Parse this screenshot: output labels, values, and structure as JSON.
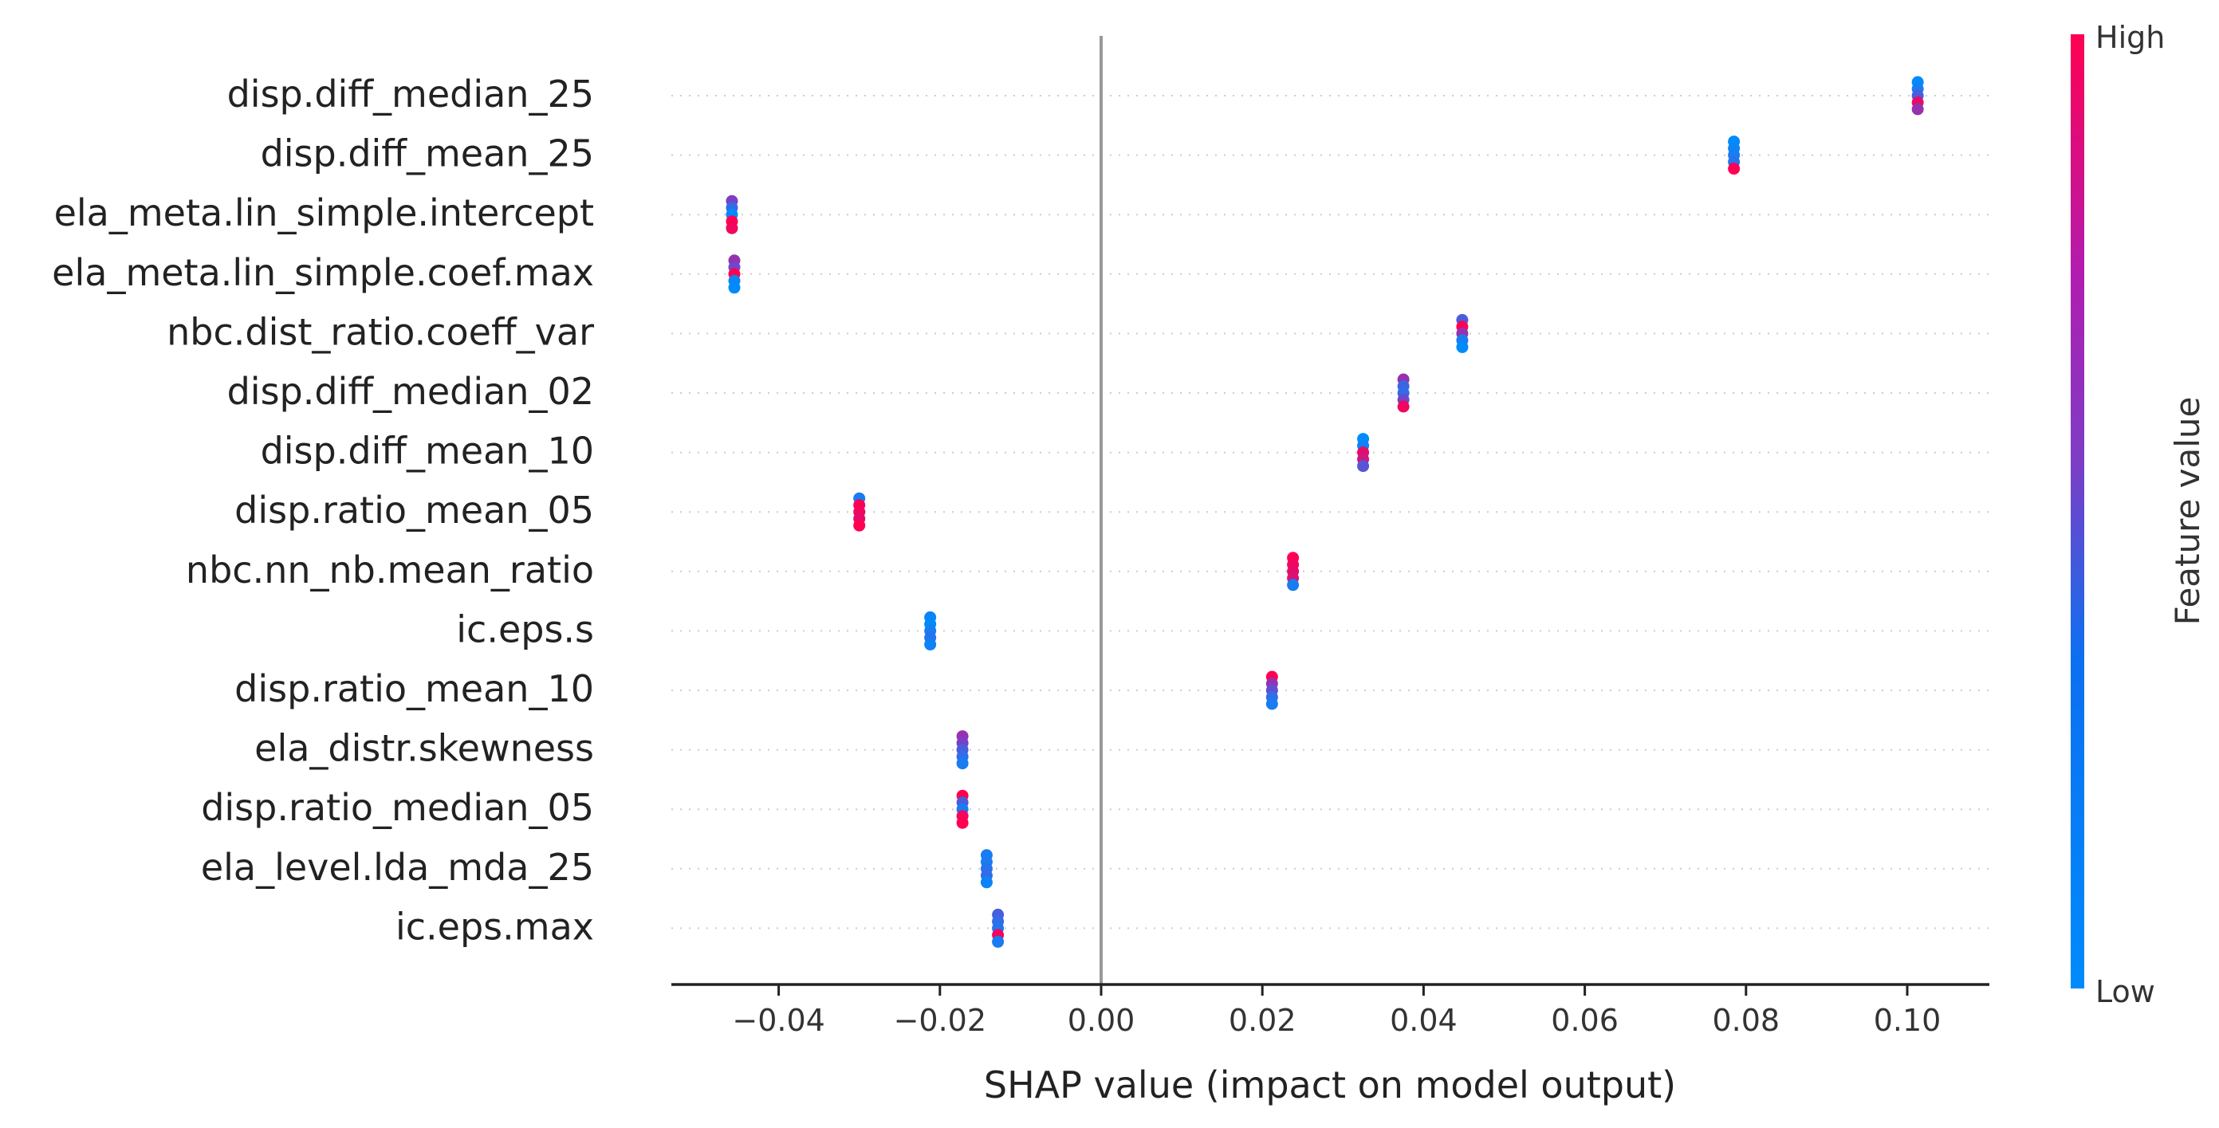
{
  "chart_data": {
    "type": "scatter",
    "subtype": "shap-beeswarm",
    "title": "",
    "xlabel": "SHAP value (impact on model output)",
    "xlim": [
      -0.0535,
      0.1095
    ],
    "xticks": [
      -0.04,
      -0.02,
      0.0,
      0.02,
      0.04,
      0.06,
      0.08,
      0.1
    ],
    "xtick_labels": [
      "−0.04",
      "−0.02",
      "0.00",
      "0.02",
      "0.04",
      "0.06",
      "0.08",
      "0.10"
    ],
    "grid": "dotted horizontal guide per feature",
    "colorbar": {
      "label": "Feature value",
      "high_label": "High",
      "low_label": "Low",
      "low_color": "#008bfb",
      "mid_color": "#7c3ec6",
      "high_color": "#ff0052"
    },
    "features": [
      {
        "name": "disp.diff_median_25",
        "x": 0.1013,
        "colors": [
          0.0,
          0.1,
          0.3,
          0.9,
          0.6
        ]
      },
      {
        "name": "disp.diff_mean_25",
        "x": 0.0785,
        "colors": [
          0.0,
          0.05,
          0.1,
          0.15,
          1.0
        ]
      },
      {
        "name": "ela_meta.lin_simple.intercept",
        "x": -0.0458,
        "colors": [
          0.5,
          0.2,
          0.0,
          1.0,
          0.95
        ]
      },
      {
        "name": "ela_meta.lin_simple.coef.max",
        "x": -0.0455,
        "colors": [
          0.6,
          0.45,
          1.0,
          0.05,
          0.0
        ]
      },
      {
        "name": "nbc.dist_ratio.coeff_var",
        "x": 0.0448,
        "colors": [
          0.3,
          1.0,
          0.6,
          0.1,
          0.0
        ]
      },
      {
        "name": "disp.diff_median_02",
        "x": 0.0375,
        "colors": [
          0.6,
          0.25,
          0.2,
          0.45,
          0.95
        ]
      },
      {
        "name": "disp.diff_mean_10",
        "x": 0.0325,
        "colors": [
          0.0,
          0.05,
          0.9,
          0.8,
          0.35
        ]
      },
      {
        "name": "disp.ratio_mean_05",
        "x": -0.03,
        "colors": [
          0.1,
          1.0,
          0.95,
          0.9,
          1.0
        ]
      },
      {
        "name": "nbc.nn_nb.mean_ratio",
        "x": 0.0238,
        "colors": [
          1.0,
          0.95,
          0.9,
          0.85,
          0.1
        ]
      },
      {
        "name": "ic.eps.s",
        "x": -0.0212,
        "colors": [
          0.05,
          0.0,
          0.1,
          0.15,
          0.05
        ]
      },
      {
        "name": "disp.ratio_mean_10",
        "x": 0.0212,
        "colors": [
          1.0,
          0.6,
          0.4,
          0.2,
          0.1
        ]
      },
      {
        "name": "ela_distr.skewness",
        "x": -0.0172,
        "colors": [
          0.6,
          0.5,
          0.3,
          0.2,
          0.1
        ]
      },
      {
        "name": "disp.ratio_median_05",
        "x": -0.0172,
        "colors": [
          1.0,
          0.3,
          0.1,
          0.95,
          1.0
        ]
      },
      {
        "name": "ela_level.lda_mda_25",
        "x": -0.0142,
        "colors": [
          0.1,
          0.1,
          0.15,
          0.2,
          0.05
        ]
      },
      {
        "name": "ic.eps.max",
        "x": -0.0128,
        "colors": [
          0.3,
          0.2,
          0.15,
          0.95,
          0.1
        ]
      }
    ]
  }
}
